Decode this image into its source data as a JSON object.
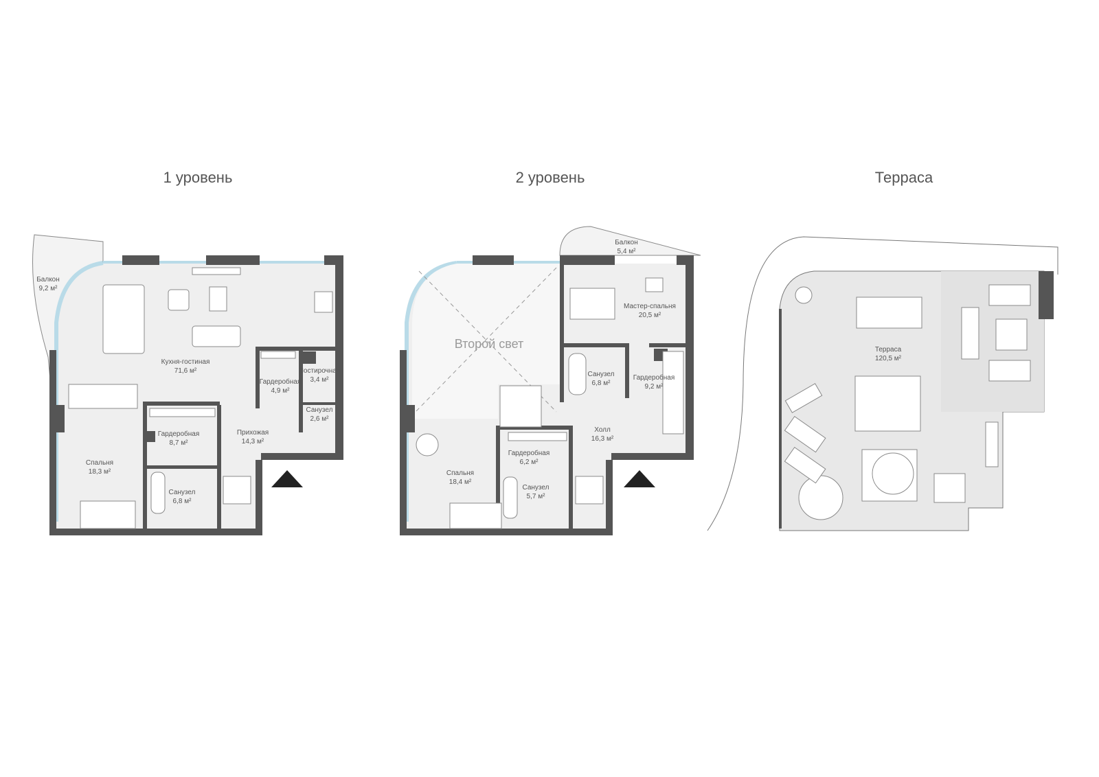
{
  "levels": [
    {
      "title": "1 уровень"
    },
    {
      "title": "2 уровень"
    },
    {
      "title": "Терраса"
    }
  ],
  "level1_rooms": {
    "balcony": {
      "name": "Балкон",
      "area": "9,2 м²"
    },
    "kitchen_living": {
      "name": "Кухня-гостиная",
      "area": "71,6 м²"
    },
    "wardrobe_a": {
      "name": "Гардеробная",
      "area": "4,9 м²"
    },
    "laundry": {
      "name": "Постирочная",
      "area": "3,4 м²"
    },
    "bath_small": {
      "name": "Санузел",
      "area": "2,6 м²"
    },
    "hall": {
      "name": "Прихожая",
      "area": "14,3 м²"
    },
    "wardrobe_b": {
      "name": "Гардеробная",
      "area": "8,7 м²"
    },
    "bedroom": {
      "name": "Спальня",
      "area": "18,3 м²"
    },
    "bath": {
      "name": "Санузел",
      "area": "6,8 м²"
    }
  },
  "level2_rooms": {
    "balcony": {
      "name": "Балкон",
      "area": "5,4 м²"
    },
    "second_light": {
      "name": "Второй свет"
    },
    "master_bedroom": {
      "name": "Мастер-спальня",
      "area": "20,5 м²"
    },
    "bath_master": {
      "name": "Санузел",
      "area": "6,8 м²"
    },
    "wardrobe_a": {
      "name": "Гардеробная",
      "area": "9,2 м²"
    },
    "hall": {
      "name": "Холл",
      "area": "16,3 м²"
    },
    "wardrobe_b": {
      "name": "Гардеробная",
      "area": "6,2 м²"
    },
    "bedroom": {
      "name": "Спальня",
      "area": "18,4 м²"
    },
    "bath": {
      "name": "Санузел",
      "area": "5,7 м²"
    }
  },
  "terrace_rooms": {
    "terrace": {
      "name": "Терраса",
      "area": "120,5 м²"
    }
  },
  "colors": {
    "wall": "#555555",
    "floor": "#efefef",
    "glass": "#b9dbe8",
    "terrace_floor": "#e8e8e8"
  }
}
